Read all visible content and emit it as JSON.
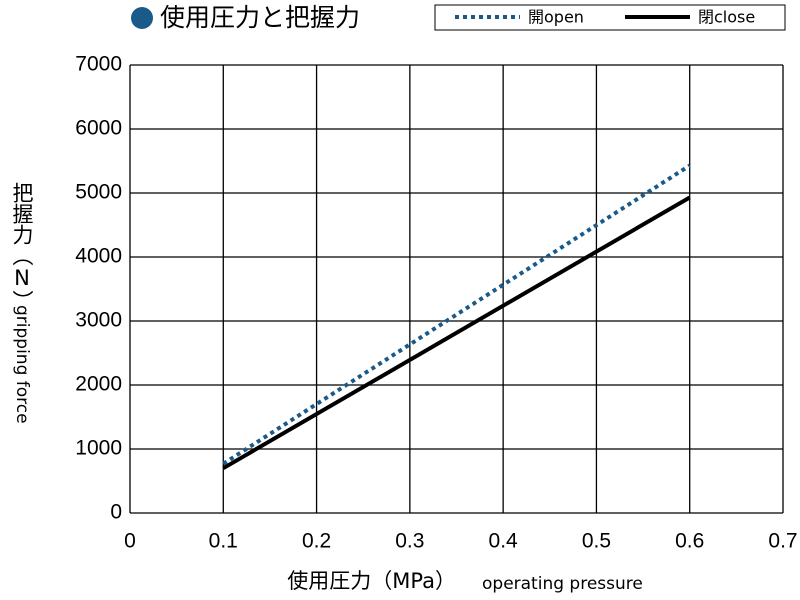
{
  "chart_data": {
    "type": "line",
    "title": "使用圧力と把握力",
    "xlabel": "使用圧力（MPa）",
    "xlabel_en": "operating pressure",
    "ylabel": "把握力（N）",
    "ylabel_en": "gripping force",
    "x": [
      0.1,
      0.6
    ],
    "series": [
      {
        "name": "開open",
        "color": "#1a5a8a",
        "dash": "dotted",
        "values": [
          770,
          5430
        ]
      },
      {
        "name": "閉close",
        "color": "#000000",
        "dash": "solid",
        "values": [
          700,
          4930
        ]
      }
    ],
    "xlim": [
      0,
      0.7
    ],
    "xticks": [
      0,
      0.1,
      0.2,
      0.3,
      0.4,
      0.5,
      0.6,
      0.7
    ],
    "ylim": [
      0,
      7000
    ],
    "yticks": [
      0,
      1000,
      2000,
      3000,
      4000,
      5000,
      6000,
      7000
    ],
    "grid": true,
    "legend": "top-right"
  }
}
